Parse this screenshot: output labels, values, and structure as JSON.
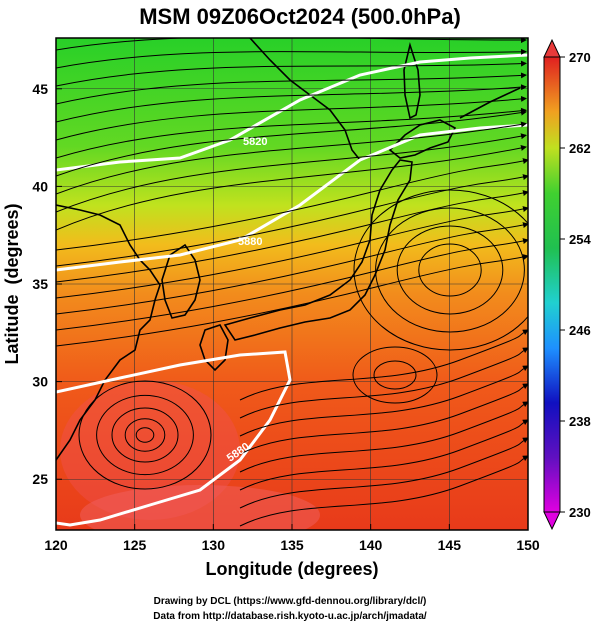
{
  "chart_data": {
    "type": "heatmap",
    "title": "MSM 09Z06Oct2024 (500.0hPa)",
    "xlabel": "Longitude (degrees)",
    "ylabel": "Latitude  (degrees)",
    "xlim": [
      120,
      150
    ],
    "ylim": [
      22.4,
      47.6
    ],
    "x_ticks": [
      120,
      125,
      130,
      135,
      140,
      145,
      150
    ],
    "y_ticks": [
      25,
      30,
      35,
      40,
      45
    ],
    "colorbar": {
      "min": 230,
      "max": 270,
      "ticks": [
        230,
        238,
        246,
        254,
        262,
        270
      ],
      "colors": [
        "#e000e0",
        "#1010c0",
        "#1e90ff",
        "#20d0d0",
        "#30d030",
        "#b0e020",
        "#f0c020",
        "#f07020",
        "#e02020"
      ]
    },
    "contour_labels": [
      "5880",
      "5820",
      "5880"
    ],
    "colors": {
      "cold": "#2ecc2e",
      "warm": "#f05a1a",
      "hot": "#e82828",
      "contour": "#ffffff",
      "streamline": "#000000"
    }
  },
  "footer": {
    "line1": "Drawing by DCL (https://www.gfd-dennou.org/library/dcl/)",
    "line2": "Data from http://database.rish.kyoto-u.ac.jp/arch/jmadata/"
  }
}
